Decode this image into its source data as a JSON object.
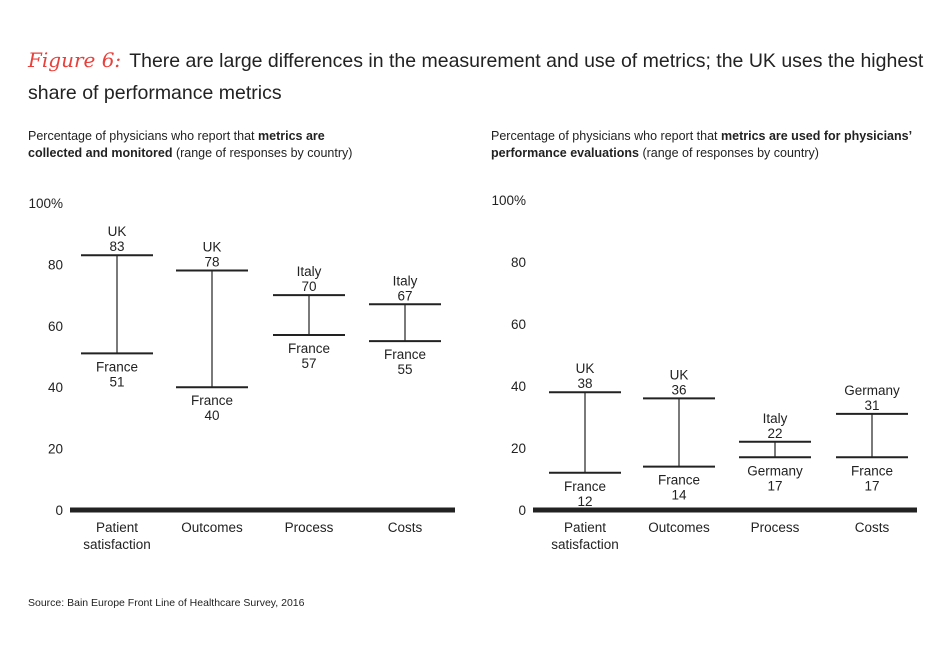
{
  "figure_label": "Figure 6:",
  "title": "There are large differences in the measurement and use of metrics; the UK uses the highest share of performance metrics",
  "source": "Source: Bain Europe Front Line of Healthcare Survey, 2016",
  "colors": {
    "figure_label": "#e8413c",
    "lines": "#222222",
    "axis": "#222222"
  },
  "chart_data": [
    {
      "type": "range",
      "subtitle": {
        "pre": "Percentage of physicians who report that ",
        "bold": "metrics are collected and monitored",
        "post": " (range of responses by country)"
      },
      "ylim": [
        0,
        100
      ],
      "yticks": [
        "0",
        "20",
        "40",
        "60",
        "80",
        "100%"
      ],
      "ytick_values": [
        0,
        20,
        40,
        60,
        80,
        100
      ],
      "grid": false,
      "categories": [
        "Patient satisfaction",
        "Outcomes",
        "Process",
        "Costs"
      ],
      "high": [
        {
          "country": "UK",
          "value": 83
        },
        {
          "country": "UK",
          "value": 78
        },
        {
          "country": "Italy",
          "value": 70
        },
        {
          "country": "Italy",
          "value": 67
        }
      ],
      "low": [
        {
          "country": "France",
          "value": 51
        },
        {
          "country": "France",
          "value": 40
        },
        {
          "country": "France",
          "value": 57
        },
        {
          "country": "France",
          "value": 55
        }
      ]
    },
    {
      "type": "range",
      "subtitle": {
        "pre": "Percentage of physicians who report that ",
        "bold": "metrics are used for physicians’ performance evaluations",
        "post": " (range of responses by country)"
      },
      "ylim": [
        0,
        100
      ],
      "yticks": [
        "0",
        "20",
        "40",
        "60",
        "80",
        "100%"
      ],
      "ytick_values": [
        0,
        20,
        40,
        60,
        80,
        100
      ],
      "grid": false,
      "categories": [
        "Patient satisfaction",
        "Outcomes",
        "Process",
        "Costs"
      ],
      "high": [
        {
          "country": "UK",
          "value": 38
        },
        {
          "country": "UK",
          "value": 36
        },
        {
          "country": "Italy",
          "value": 22
        },
        {
          "country": "Germany",
          "value": 31
        }
      ],
      "low": [
        {
          "country": "France",
          "value": 12
        },
        {
          "country": "France",
          "value": 14
        },
        {
          "country": "Germany",
          "value": 17
        },
        {
          "country": "France",
          "value": 17
        }
      ]
    }
  ]
}
